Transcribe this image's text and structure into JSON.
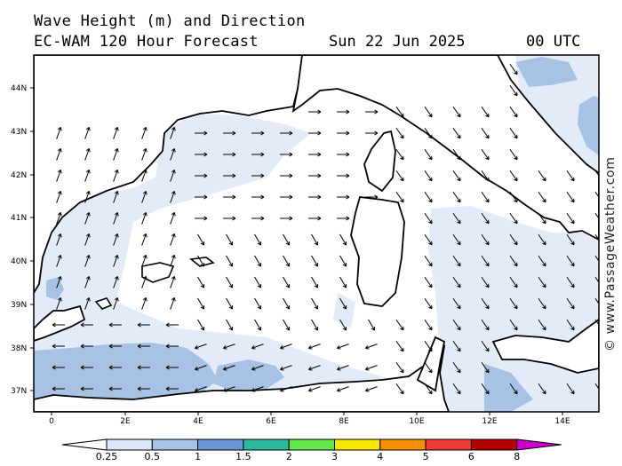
{
  "header": {
    "title": "Wave Height (m) and Direction",
    "model": "EC-WAM 120 Hour Forecast",
    "date": "Sun 22 Jun 2025",
    "time": "00 UTC"
  },
  "watermark": "© www.PassageWeather.com",
  "map": {
    "lat_labels": [
      "44N",
      "43N",
      "42N",
      "41N",
      "40N",
      "39N",
      "38N",
      "37N"
    ],
    "lon_labels": [
      "0",
      "2E",
      "4E",
      "6E",
      "8E",
      "10E",
      "12E",
      "14E"
    ],
    "lon_range": [
      -0.5,
      15.0
    ],
    "lat_range": [
      36.5,
      44.75
    ]
  },
  "legend": {
    "labels": [
      "0.25",
      "0.5",
      "1",
      "1.5",
      "2",
      "3",
      "4",
      "5",
      "6",
      "8"
    ],
    "colors": [
      "#ffffff",
      "#dbe6f6",
      "#a7c2e4",
      "#6b93d6",
      "#2bb89c",
      "#63e64a",
      "#f6e600",
      "#f79000",
      "#ef3a3a",
      "#b40000",
      "#cc00cc"
    ]
  },
  "colors": {
    "sea_low": "#e3ebf8",
    "sea_mid": "#a7c2e4",
    "land": "#ffffff",
    "coast": "#000000"
  }
}
